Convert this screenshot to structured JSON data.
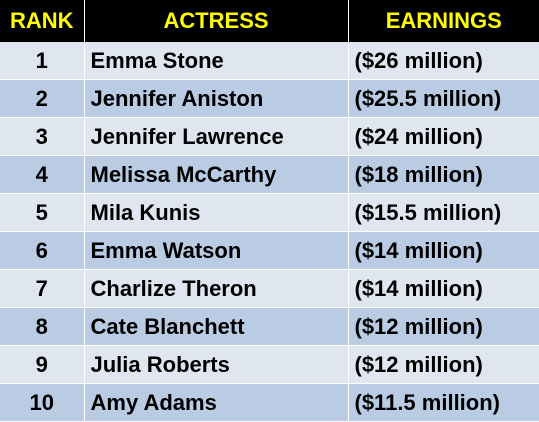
{
  "table": {
    "headers": {
      "rank": "RANK",
      "actress": "ACTRESS",
      "earnings": "EARNINGS"
    },
    "rows": [
      {
        "rank": "1",
        "actress": "Emma Stone",
        "earnings": "($26 million)"
      },
      {
        "rank": "2",
        "actress": "Jennifer Aniston",
        "earnings": "($25.5 million)"
      },
      {
        "rank": "3",
        "actress": "Jennifer Lawrence",
        "earnings": "($24 million)"
      },
      {
        "rank": "4",
        "actress": "Melissa McCarthy",
        "earnings": "($18 million)"
      },
      {
        "rank": "5",
        "actress": "Mila Kunis",
        "earnings": "($15.5 million)"
      },
      {
        "rank": "6",
        "actress": "Emma Watson",
        "earnings": "($14 million)"
      },
      {
        "rank": "7",
        "actress": "Charlize Theron",
        "earnings": "($14 million)"
      },
      {
        "rank": "8",
        "actress": "Cate Blanchett",
        "earnings": "($12 million)"
      },
      {
        "rank": "9",
        "actress": "Julia Roberts",
        "earnings": "($12 million)"
      },
      {
        "rank": "10",
        "actress": "Amy Adams",
        "earnings": "($11.5 million)"
      }
    ]
  },
  "colors": {
    "header_background": "#000000",
    "header_text": "#ffff00",
    "row_light": "#dfe6f0",
    "row_dark": "#b9cce4"
  }
}
